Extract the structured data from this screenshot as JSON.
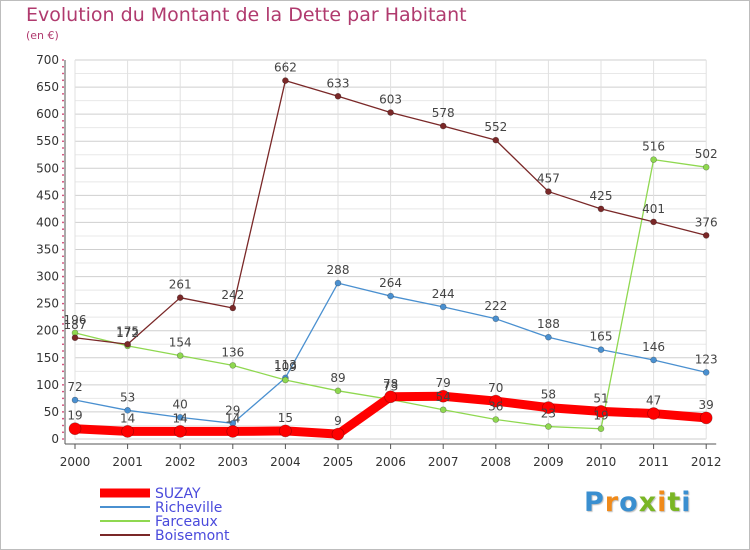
{
  "title": "Evolution du Montant de la Dette par Habitant",
  "subtitle": "(en €)",
  "logo": {
    "text": "Proxiti",
    "colors": [
      "#3a8fd0",
      "#f08a1a",
      "#3a8fd0",
      "#7ab624",
      "#f08a1a",
      "#7ab624",
      "#3a8fd0"
    ]
  },
  "chart_data": {
    "type": "line",
    "x": [
      "2000",
      "2001",
      "2002",
      "2003",
      "2004",
      "2005",
      "2006",
      "2007",
      "2008",
      "2009",
      "2010",
      "2011",
      "2012"
    ],
    "ylim": [
      0,
      700
    ],
    "yticks": [
      "0",
      "50",
      "100",
      "150",
      "200",
      "250",
      "300",
      "350",
      "400",
      "450",
      "500",
      "550",
      "600",
      "650",
      "700"
    ],
    "grid": true,
    "legend_position": "bottom-left",
    "series": [
      {
        "name": "SUZAY",
        "color": "#ff0000",
        "values": [
          19,
          14,
          14,
          14,
          15,
          9,
          78,
          79,
          70,
          58,
          51,
          47,
          39
        ],
        "labels": [
          "19",
          "14",
          "14",
          "14",
          "15",
          "9",
          "78",
          "79",
          "70",
          "58",
          "51",
          "47",
          "39"
        ]
      },
      {
        "name": "Richeville",
        "color": "#4a90d0",
        "values": [
          72,
          53,
          40,
          29,
          113,
          288,
          264,
          244,
          222,
          188,
          165,
          146,
          123
        ],
        "labels": [
          "72",
          "53",
          "40",
          "29",
          "113",
          "288",
          "264",
          "244",
          "222",
          "188",
          "165",
          "146",
          "123"
        ]
      },
      {
        "name": "Farceaux",
        "color": "#8fd850",
        "values": [
          196,
          172,
          154,
          136,
          109,
          89,
          73,
          54,
          36,
          23,
          19,
          516,
          502
        ],
        "labels": [
          "196",
          "172",
          "154",
          "136",
          "109",
          "89",
          "73",
          "54",
          "36",
          "23",
          "19",
          "516",
          "502"
        ]
      },
      {
        "name": "Boisemont",
        "color": "#7a2828",
        "values": [
          187,
          175,
          261,
          242,
          662,
          633,
          603,
          578,
          552,
          457,
          425,
          401,
          376
        ],
        "labels": [
          "187",
          "175",
          "261",
          "242",
          "662",
          "633",
          "603",
          "578",
          "552",
          "457",
          "425",
          "401",
          "376"
        ]
      }
    ]
  }
}
